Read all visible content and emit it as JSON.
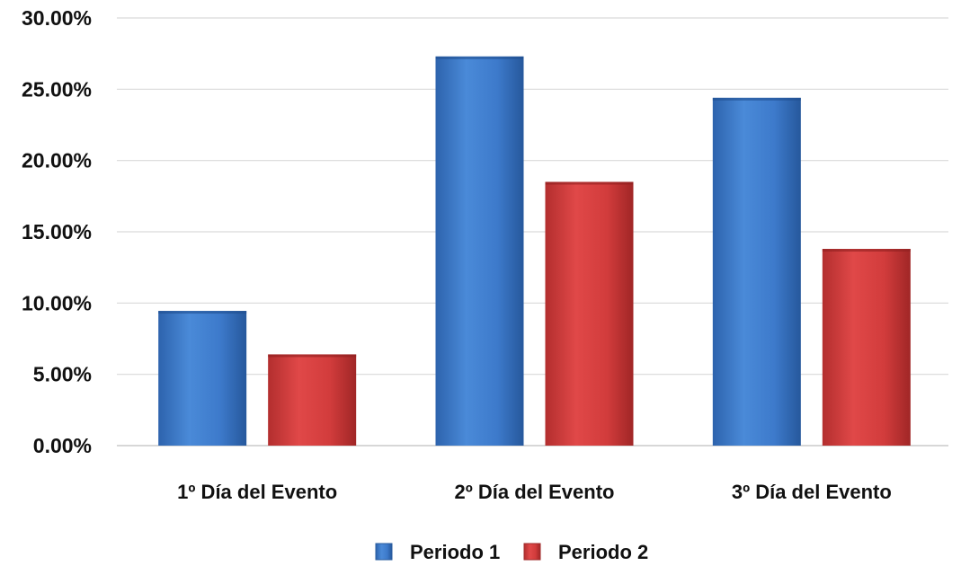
{
  "chart_data": {
    "type": "bar",
    "categories": [
      "1º Día del Evento",
      "2º Día del Evento",
      "3º Día del Evento"
    ],
    "series": [
      {
        "name": "Periodo 1",
        "values": [
          9.45,
          27.3,
          24.4
        ],
        "color": "#3a78c9"
      },
      {
        "name": "Periodo 2",
        "values": [
          6.4,
          18.5,
          13.8
        ],
        "color": "#cf3a3a"
      }
    ],
    "ylim": [
      0,
      30
    ],
    "y_ticks": [
      0,
      5,
      10,
      15,
      20,
      25,
      30
    ],
    "y_tick_labels": [
      "0.00%",
      "5.00%",
      "10.00%",
      "15.00%",
      "20.00%",
      "25.00%",
      "30.00%"
    ],
    "grid": true,
    "legend_position": "bottom"
  }
}
